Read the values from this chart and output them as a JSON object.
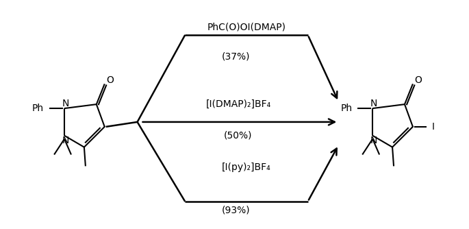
{
  "background_color": "#ffffff",
  "fig_width": 6.85,
  "fig_height": 3.34,
  "dpi": 100,
  "reagent_top": "PhC(O)OI(DMAP)",
  "yield_top": "(37%)",
  "reagent_mid": "[I(DMAP)₂]BF₄",
  "yield_mid": "(50%)",
  "reagent_bot": "[I(py)₂]BF₄",
  "yield_bot": "(93%)",
  "font_size": 10,
  "font_size_mol": 10,
  "line_color": "#000000",
  "text_color": "#000000"
}
